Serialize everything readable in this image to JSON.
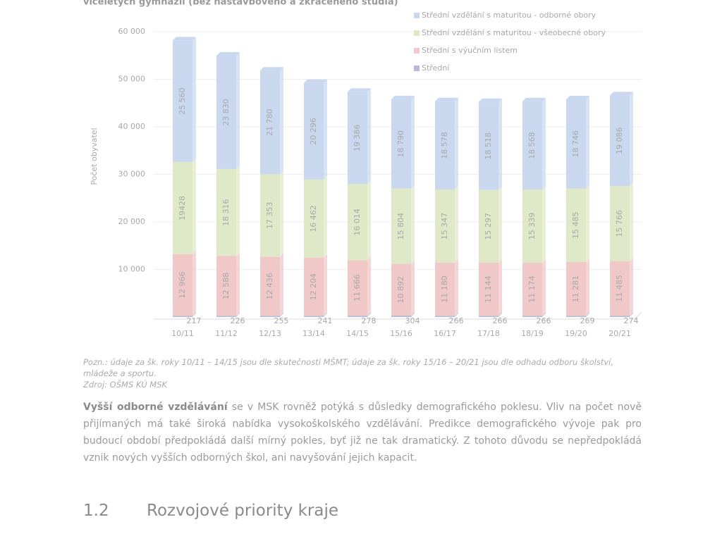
{
  "chart_data": {
    "type": "bar",
    "stacked": true,
    "title": "víceletých gymnázií (bez nástavbového a zkráceného studia)",
    "y_label": "Počet obyvatel",
    "categories": [
      "10/11",
      "11/12",
      "12/13",
      "13/14",
      "14/15",
      "15/16",
      "16/17",
      "17/18",
      "18/19",
      "19/20",
      "20/21"
    ],
    "series": [
      {
        "name": "Střední",
        "color": "#b9b9d8",
        "values": [
          217,
          226,
          255,
          241,
          278,
          304,
          266,
          266,
          266,
          269,
          274
        ]
      },
      {
        "name": "Střední s výučním listem",
        "color": "#f0c8c8",
        "values": [
          12966,
          12588,
          12436,
          12204,
          11666,
          10892,
          11180,
          11144,
          11174,
          11281,
          11485
        ],
        "value_labels": [
          "12 966",
          "12 588",
          "12 436",
          "12 204",
          "11 666",
          "10 892",
          "11 180",
          "11 144",
          "11 174",
          "11 281",
          "11 485"
        ]
      },
      {
        "name": "Střední vzdělání s maturitou - všeobecné obory",
        "color": "#dfe9c8",
        "values": [
          19428,
          18316,
          17353,
          16462,
          16014,
          15804,
          15347,
          15297,
          15339,
          15485,
          15766
        ],
        "value_labels": [
          "19428",
          "18 316",
          "17 353",
          "16 462",
          "16 014",
          "15 804",
          "15 347",
          "15 297",
          "15 339",
          "15 485",
          "15 766"
        ]
      },
      {
        "name": "Střední vzdělání s maturitou - odborné obory",
        "color": "#c9d8ef",
        "values": [
          25560,
          23830,
          21780,
          20296,
          19386,
          18790,
          18578,
          18518,
          18568,
          18746,
          19086
        ],
        "value_labels": [
          "25 560",
          "23 830",
          "21 780",
          "20 296",
          "19 386",
          "18 790",
          "18 578",
          "18 518",
          "18 568",
          "18 746",
          "19 086"
        ]
      }
    ],
    "ylim": [
      0,
      60000
    ],
    "yticks": [
      {
        "value": 10000,
        "label": "10 000"
      },
      {
        "value": 20000,
        "label": "20 000"
      },
      {
        "value": 30000,
        "label": "30 000"
      },
      {
        "value": 40000,
        "label": "40 000"
      },
      {
        "value": 50000,
        "label": "50 000"
      },
      {
        "value": 60000,
        "label": "60 000"
      }
    ],
    "grid": true,
    "legend": "top-right"
  },
  "note": "Pozn.: údaje za šk. roky 10/11 – 14/15 jsou dle skutečnosti MŠMT; údaje za šk. roky 15/16 – 20/21 jsou dle odhadu odboru školství, mládeže a sportu.",
  "source": "Zdroj: OŠMS KÚ MSK",
  "paragraph": {
    "bold": "Vyšší odborné vzdělávání",
    "text": " se v MSK rovněž potýká s důsledky demografického poklesu. Vliv na počet nově přijímaných má také široká nabídka vysokoškolského vzdělávání. Predikce demografického vývoje pak pro budoucí období předpokládá další mírný pokles, byť již ne tak dramatický. Z tohoto důvodu se nepředpokládá vznik nových vyšších odborných škol, ani navyšování jejich kapacit."
  },
  "heading": {
    "number": "1.2",
    "title": "Rozvojové priority kraje"
  }
}
